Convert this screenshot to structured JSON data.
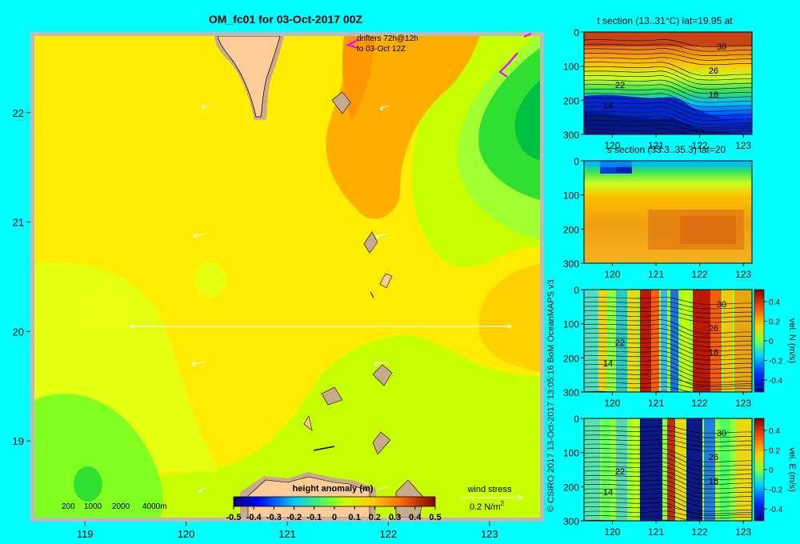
{
  "main_map": {
    "title": "OM_fc01 for 03-Oct-2017 00Z",
    "drifters_label": [
      "drifters 72h@12h",
      "to 03-Oct 12Z"
    ],
    "depth_legend": [
      "200",
      "1000",
      "2000",
      "4000m"
    ],
    "colorbar_title": "height anomaly (m)",
    "colorbar_ticks": [
      "-0.5",
      "-0.4",
      "-0.3",
      "-0.2",
      "-0.1",
      "0",
      "0.1",
      "0.2",
      "0.3",
      "0.4",
      "0.5"
    ],
    "wind_stress_label": "wind stress",
    "wind_stress_scale": "0.2 N/m",
    "wind_stress_exp": "2",
    "x_ticks": [
      "119",
      "120",
      "121",
      "122",
      "123"
    ],
    "y_ticks": [
      "22",
      "21",
      "20",
      "19"
    ]
  },
  "credit": "© CSIRO 2017   13-Oct-2017 13:05:16 BoM OceanMAPS v3",
  "colors": {
    "background": "#00ffff",
    "land": "#ffcc99",
    "land_border": "#c8aa8c",
    "frame": "#bbbbbb"
  },
  "chart_data": [
    {
      "type": "heatmap",
      "title": "OM_fc01 for 03-Oct-2017 00Z",
      "variable": "height anomaly (m)",
      "xlim": [
        118.5,
        123.5
      ],
      "ylim": [
        18.3,
        22.7
      ],
      "color_range": [
        -0.5,
        0.5
      ],
      "section_line": {
        "lon": [
          119.5,
          123.2
        ],
        "lat": [
          20,
          20
        ]
      }
    },
    {
      "type": "heatmap",
      "title": "t section (13..31°C) lat=19.95 at",
      "x_ticks": [
        "120",
        "121",
        "122",
        "123"
      ],
      "y_ticks": [
        "0",
        "100",
        "200",
        "300"
      ],
      "contour_labels": [
        "30",
        "26",
        "22",
        "18",
        "14"
      ]
    },
    {
      "type": "heatmap",
      "title": "s section (33.3..35.3) lat=20",
      "x_ticks": [
        "120",
        "121",
        "122",
        "123"
      ],
      "y_ticks": [
        "0",
        "100",
        "200",
        "300"
      ]
    },
    {
      "type": "heatmap",
      "variable": "vel. N (m/s)",
      "x_ticks": [
        "120",
        "121",
        "122",
        "123"
      ],
      "y_ticks": [
        "0",
        "100",
        "200",
        "300"
      ],
      "contour_labels": [
        "30",
        "26",
        "22",
        "18",
        "14"
      ],
      "colorbar_ticks": [
        "0.4",
        "0.2",
        "0",
        "-0.2",
        "-0.4"
      ]
    },
    {
      "type": "heatmap",
      "variable": "vel. E (m/s)",
      "x_ticks": [
        "120",
        "121",
        "122",
        "123"
      ],
      "y_ticks": [
        "0",
        "100",
        "200",
        "300"
      ],
      "contour_labels": [
        "30",
        "26",
        "22",
        "18",
        "14"
      ],
      "colorbar_ticks": [
        "0.4",
        "0.2",
        "0",
        "-0.2",
        "-0.4"
      ]
    }
  ]
}
